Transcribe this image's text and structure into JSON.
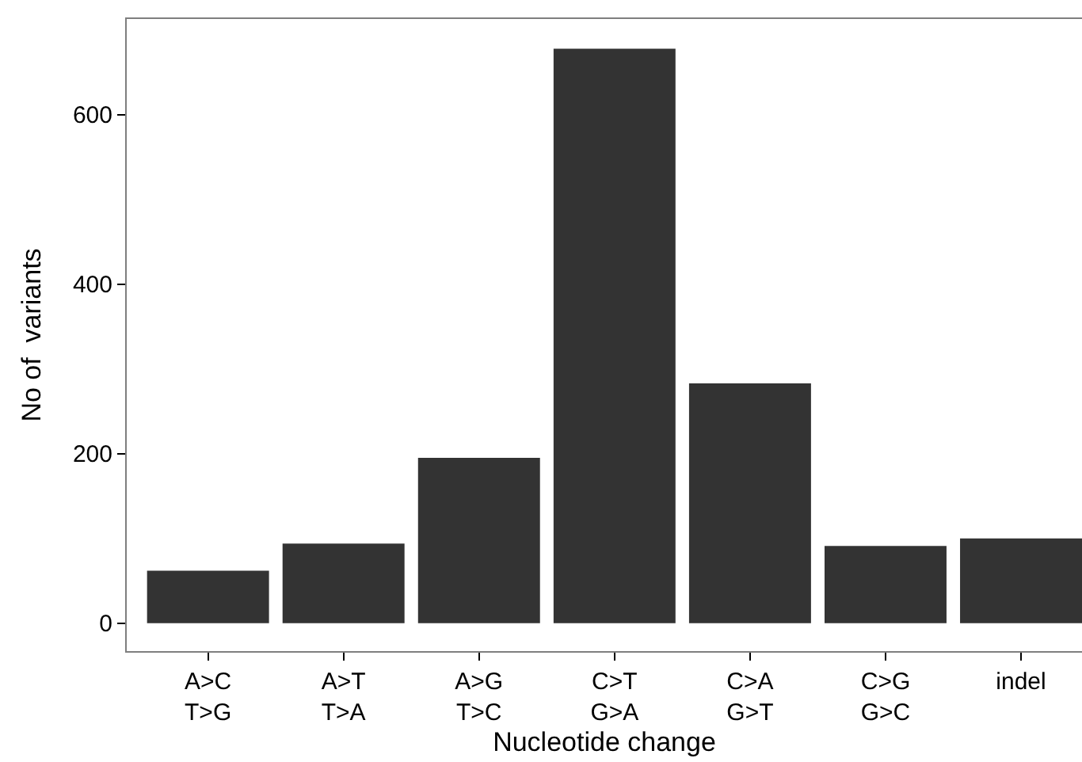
{
  "chart_data": {
    "type": "bar",
    "xlabel": "Nucleotide change",
    "ylabel": "No of  variants",
    "categories": [
      "A>C\nT>G",
      "A>T\nT>A",
      "A>G\nT>C",
      "C>T\nG>A",
      "C>A\nG>T",
      "C>G\nG>C",
      "indel"
    ],
    "values": [
      62,
      94,
      195,
      678,
      283,
      91,
      100
    ],
    "color": "#333333",
    "ylim": [
      -33,
      713
    ],
    "yticks": [
      0,
      200,
      400,
      600
    ]
  }
}
